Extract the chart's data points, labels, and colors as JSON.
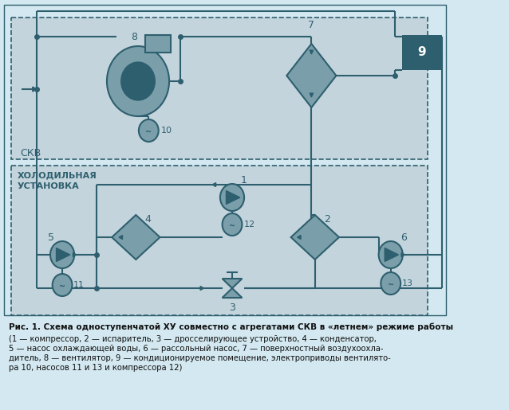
{
  "bg_color": "#d3e8f0",
  "box_color": "#c4d4dc",
  "line_color": "#2e5f6e",
  "fill_color": "#7a9faa",
  "dark_fill": "#2e5f6e",
  "title_bold": "Рис. 1. Схема одноступенчатой ХУ совместно с агрегатами СКВ в «летнем» режиме работы",
  "caption_line1": "(1 — компрессор, 2 — испаритель, 3 — дросселирующее устройство, 4 — конденсатор,",
  "caption_line2": "5 — насос охлаждающей воды, 6 — рассольный насос, 7 — поверхностный воздухоохла-",
  "caption_line3": "дитель, 8 — вентилятор, 9 — кондиционируемое помещение, электроприводы вентилято-",
  "caption_line4": "ра 10, насосов 11 и 13 и компрессора 12)",
  "skv_label": "СКВ",
  "hu_label1": "ХОЛОДИЛЬНАЯ",
  "hu_label2": "УСТАНОВКА"
}
